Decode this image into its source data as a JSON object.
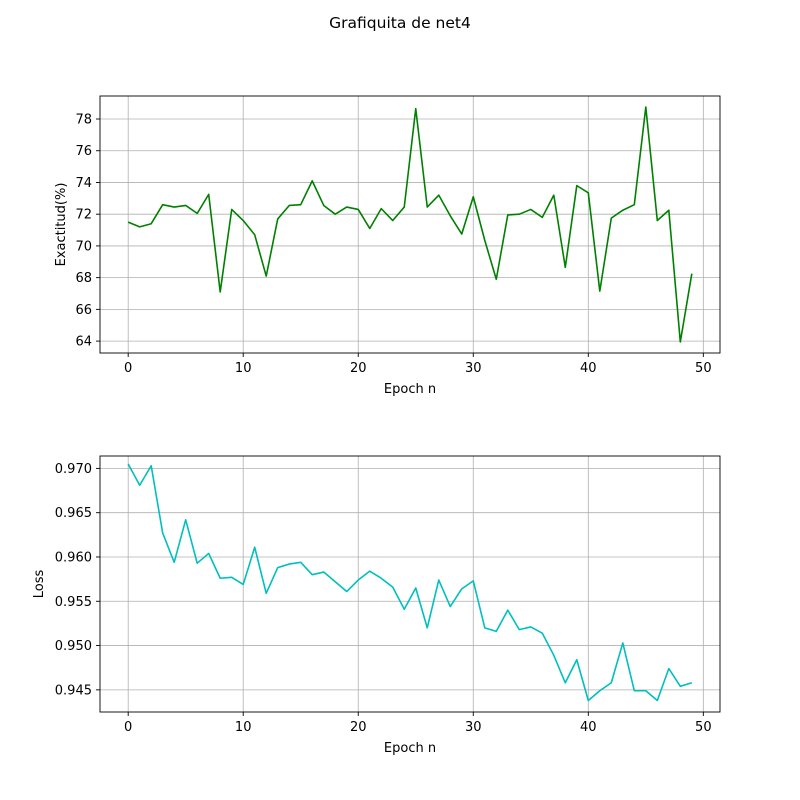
{
  "figure": {
    "title": "Grafiquita de net4"
  },
  "chart_data": [
    {
      "type": "line",
      "xlabel": "Epoch n",
      "ylabel": "Exactitud(%)",
      "xlim": [
        -2.45,
        51.45
      ],
      "ylim": [
        63.25,
        79.45
      ],
      "xticks": [
        0,
        10,
        20,
        30,
        40,
        50
      ],
      "yticks": [
        64,
        66,
        68,
        70,
        72,
        74,
        76,
        78
      ],
      "grid": true,
      "color": "#008000",
      "series": [
        {
          "x": [
            0,
            1,
            2,
            3,
            4,
            5,
            6,
            7,
            8,
            9,
            10,
            11,
            12,
            13,
            14,
            15,
            16,
            17,
            18,
            19,
            20,
            21,
            22,
            23,
            24,
            25,
            26,
            27,
            28,
            29,
            30,
            31,
            32,
            33,
            34,
            35,
            36,
            37,
            38,
            39,
            40,
            41,
            42,
            43,
            44,
            45,
            46,
            47,
            48,
            49
          ],
          "values": [
            71.5,
            71.2,
            71.4,
            72.6,
            72.45,
            72.55,
            72.05,
            73.25,
            67.1,
            72.3,
            71.6,
            70.7,
            68.1,
            71.7,
            72.55,
            72.6,
            74.1,
            72.55,
            72.0,
            72.45,
            72.3,
            71.1,
            72.35,
            71.6,
            72.45,
            78.65,
            72.45,
            73.2,
            71.9,
            70.75,
            73.1,
            70.35,
            67.9,
            71.95,
            72.0,
            72.3,
            71.8,
            73.2,
            68.65,
            73.8,
            73.35,
            67.15,
            71.75,
            72.25,
            72.6,
            78.75,
            71.6,
            72.25,
            63.95,
            68.25
          ]
        }
      ]
    },
    {
      "type": "line",
      "xlabel": "Epoch n",
      "ylabel": "Loss",
      "xlim": [
        -2.45,
        51.45
      ],
      "ylim": [
        0.9425,
        0.9714
      ],
      "xticks": [
        0,
        10,
        20,
        30,
        40,
        50
      ],
      "yticks": [
        0.945,
        0.95,
        0.955,
        0.96,
        0.965,
        0.97
      ],
      "grid": true,
      "color": "#00bfbf",
      "series": [
        {
          "x": [
            0,
            1,
            2,
            3,
            4,
            5,
            6,
            7,
            8,
            9,
            10,
            11,
            12,
            13,
            14,
            15,
            16,
            17,
            18,
            19,
            20,
            21,
            22,
            23,
            24,
            25,
            26,
            27,
            28,
            29,
            30,
            31,
            32,
            33,
            34,
            35,
            36,
            37,
            38,
            39,
            40,
            41,
            42,
            43,
            44,
            45,
            46,
            47,
            48,
            49
          ],
          "values": [
            0.9705,
            0.9681,
            0.9703,
            0.9627,
            0.9594,
            0.9642,
            0.9593,
            0.9604,
            0.9576,
            0.9577,
            0.9569,
            0.9611,
            0.9559,
            0.9588,
            0.9592,
            0.9594,
            0.958,
            0.9583,
            0.9572,
            0.9561,
            0.9574,
            0.9584,
            0.9576,
            0.9566,
            0.9541,
            0.9565,
            0.952,
            0.9574,
            0.9544,
            0.9564,
            0.9573,
            0.952,
            0.9516,
            0.954,
            0.9518,
            0.9521,
            0.9514,
            0.9489,
            0.9458,
            0.9484,
            0.9438,
            0.9449,
            0.9458,
            0.9503,
            0.9449,
            0.9449,
            0.9438,
            0.9474,
            0.9454,
            0.9458
          ]
        }
      ]
    }
  ]
}
